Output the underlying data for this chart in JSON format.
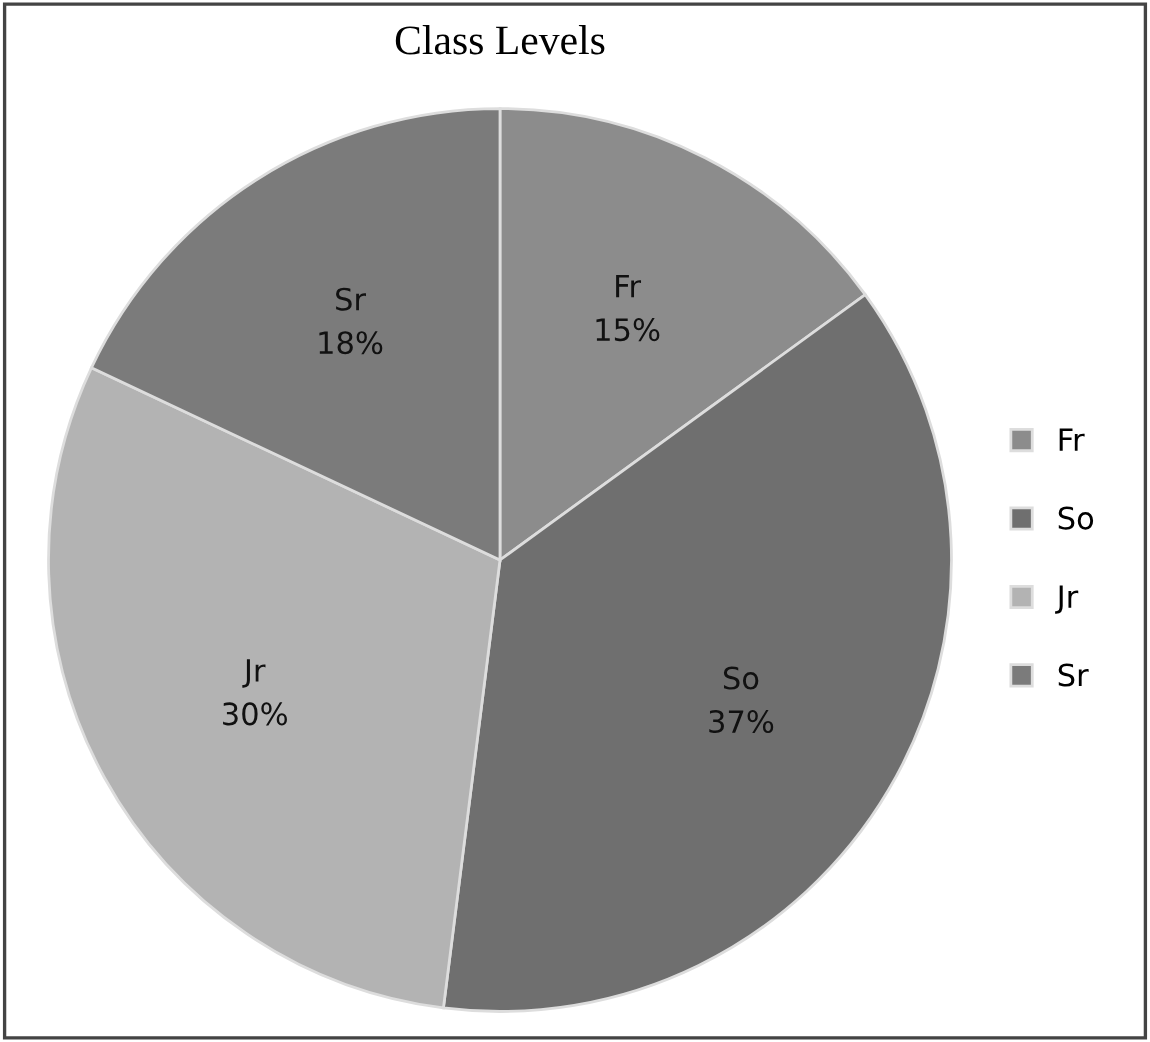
{
  "chart_data": {
    "type": "pie",
    "title": "Class Levels",
    "categories": [
      "Fr",
      "So",
      "Jr",
      "Sr"
    ],
    "values": [
      15,
      37,
      30,
      18
    ],
    "value_labels": [
      "15%",
      "37%",
      "30%",
      "18%"
    ],
    "colors": [
      "#8c8c8c",
      "#6f6f6f",
      "#b3b3b3",
      "#7b7b7b"
    ],
    "legend": "right"
  }
}
